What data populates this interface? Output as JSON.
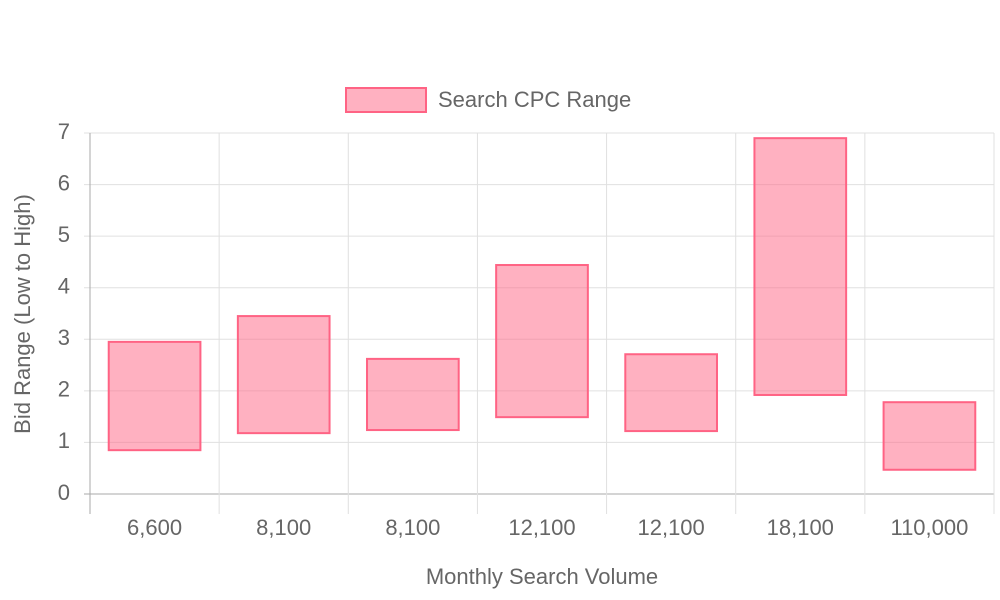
{
  "chart_data": {
    "type": "floating-bar",
    "x_label": "Monthly Search Volume",
    "y_label": "Bid Range (Low to High)",
    "categories": [
      "6,600",
      "8,100",
      "8,100",
      "12,100",
      "12,100",
      "18,100",
      "110,000"
    ],
    "series": [
      {
        "name": "Search CPC Range",
        "color": "#ff6384",
        "low": [
          0.85,
          1.18,
          1.24,
          1.49,
          1.22,
          1.92,
          0.47
        ],
        "high": [
          2.95,
          3.45,
          2.62,
          4.44,
          2.71,
          6.9,
          1.78
        ]
      }
    ],
    "ylim": [
      0,
      7
    ],
    "yticks": [
      0,
      1,
      2,
      3,
      4,
      5,
      6,
      7
    ],
    "grid": true,
    "legend": "top"
  }
}
